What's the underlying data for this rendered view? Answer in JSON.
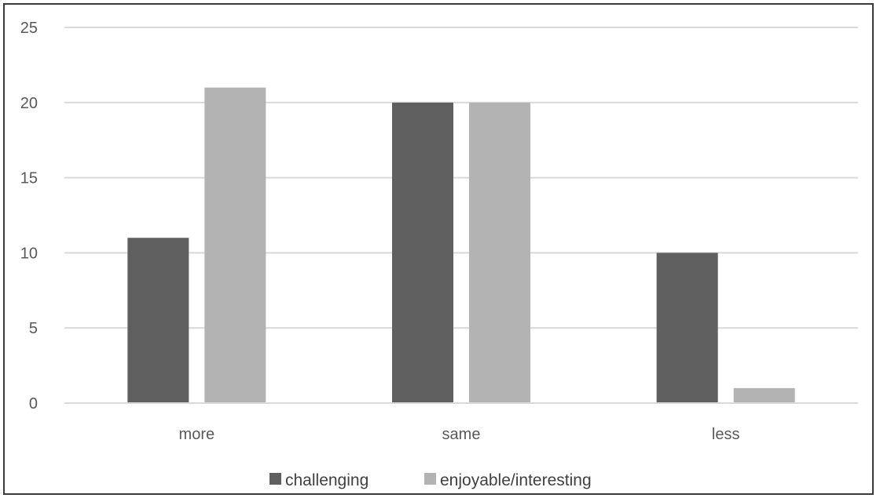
{
  "chart_data": {
    "type": "bar",
    "categories": [
      "more",
      "same",
      "less"
    ],
    "series": [
      {
        "name": "challenging",
        "values": [
          11,
          20,
          10
        ],
        "color": "#5f5f5f"
      },
      {
        "name": "enjoyable/interesting",
        "values": [
          21,
          20,
          1
        ],
        "color": "#b3b3b3"
      }
    ],
    "ylim": [
      0,
      25
    ],
    "yticks": [
      0,
      5,
      10,
      15,
      20,
      25
    ],
    "grid": true,
    "gridColor": "#d9d9d9",
    "legend": "bottom"
  }
}
